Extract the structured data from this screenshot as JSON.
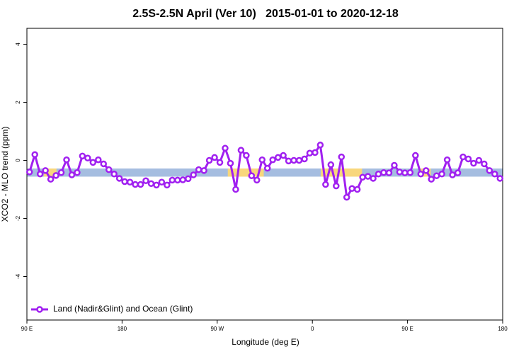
{
  "chart_data": {
    "type": "line",
    "title": "2.5S-2.5N April (Ver 10)   2015-01-01 to 2020-12-18",
    "x_label": "Longitude (deg E)",
    "y_label": "XCO2 - MLO trend (ppm)",
    "xlim": [
      90,
      540
    ],
    "ylim": [
      -5.5,
      4.55
    ],
    "xticks": [
      {
        "value": 90,
        "label": "90 E"
      },
      {
        "value": 180,
        "label": "180"
      },
      {
        "value": 270,
        "label": "90 W"
      },
      {
        "value": 360,
        "label": "0"
      },
      {
        "value": 450,
        "label": "90 E"
      },
      {
        "value": 540,
        "label": "180"
      }
    ],
    "yticks": [
      -4,
      -2,
      0,
      2,
      4
    ],
    "grid": false,
    "legend": "bottomleft",
    "band": {
      "y": [
        -0.56,
        -0.28
      ],
      "color": "#a5bde0",
      "land_color": "#f8d77c",
      "land": [
        [
          106,
          118
        ],
        [
          280,
          314
        ],
        [
          368,
          407
        ],
        [
          462,
          472
        ]
      ]
    },
    "x": [
      92.5,
      97.5,
      102.5,
      107.5,
      112.5,
      117.5,
      122.5,
      127.5,
      132.5,
      137.5,
      142.5,
      147.5,
      152.5,
      157.5,
      162.5,
      167.5,
      172.5,
      177.5,
      182.5,
      187.5,
      192.5,
      197.5,
      202.5,
      207.5,
      212.5,
      217.5,
      222.5,
      227.5,
      232.5,
      237.5,
      242.5,
      247.5,
      252.5,
      257.5,
      262.5,
      267.5,
      272.5,
      277.5,
      282.5,
      287.5,
      292.5,
      297.5,
      302.5,
      307.5,
      312.5,
      317.5,
      322.5,
      327.5,
      332.5,
      337.5,
      342.5,
      347.5,
      352.5,
      357.5,
      362.5,
      367.5,
      372.5,
      377.5,
      382.5,
      387.5,
      392.5,
      397.5,
      402.5,
      407.5,
      412.5,
      417.5,
      422.5,
      427.5,
      432.5,
      437.5,
      442.5,
      447.5,
      452.5,
      457.5,
      462.5,
      467.5,
      472.5,
      477.5,
      482.5,
      487.5,
      492.5,
      497.5,
      502.5,
      507.5,
      512.5,
      517.5,
      522.5,
      527.5,
      532.5,
      537.5
    ],
    "series": [
      {
        "name": "Land (Nadir&Glint) and Ocean (Glint)",
        "color": "#a020f0",
        "values": [
          -0.4,
          0.2,
          -0.47,
          -0.35,
          -0.65,
          -0.52,
          -0.42,
          0.02,
          -0.5,
          -0.42,
          0.15,
          0.08,
          -0.07,
          0.02,
          -0.12,
          -0.32,
          -0.47,
          -0.62,
          -0.73,
          -0.75,
          -0.83,
          -0.83,
          -0.7,
          -0.8,
          -0.85,
          -0.75,
          -0.85,
          -0.68,
          -0.68,
          -0.67,
          -0.63,
          -0.5,
          -0.32,
          -0.35,
          0,
          0.1,
          -0.07,
          0.42,
          -0.1,
          -1.0,
          0.35,
          0.17,
          -0.53,
          -0.68,
          0.02,
          -0.27,
          0.02,
          0.1,
          0.17,
          -0.02,
          0,
          0,
          0.05,
          0.25,
          0.27,
          0.53,
          -0.83,
          -0.15,
          -0.88,
          0.12,
          -1.27,
          -0.97,
          -1.0,
          -0.58,
          -0.55,
          -0.62,
          -0.47,
          -0.42,
          -0.43,
          -0.17,
          -0.4,
          -0.43,
          -0.42,
          0.17,
          -0.47,
          -0.35,
          -0.65,
          -0.53,
          -0.47,
          0.02,
          -0.5,
          -0.43,
          0.12,
          0.05,
          -0.1,
          0,
          -0.12,
          -0.35,
          -0.47,
          -0.62
        ]
      }
    ]
  }
}
